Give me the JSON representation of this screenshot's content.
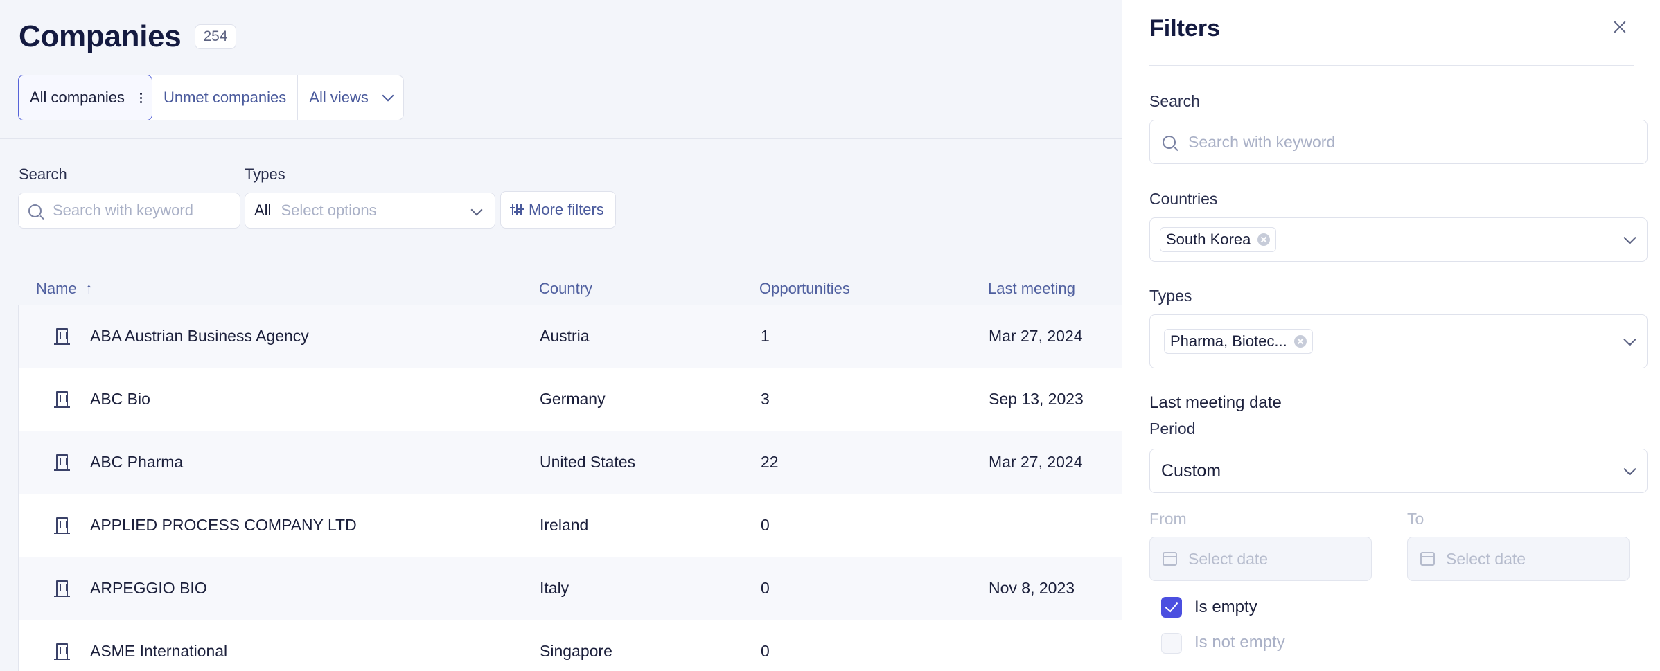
{
  "page": {
    "title": "Companies",
    "count": "254"
  },
  "views": {
    "tabs": [
      "All companies",
      "Unmet companies"
    ],
    "dropdown_label": "All views"
  },
  "filters_bar": {
    "search_label": "Search",
    "search_placeholder": "Search with keyword",
    "types_label": "Types",
    "types_value": "All",
    "types_placeholder": "Select options",
    "more_filters": "More filters"
  },
  "table": {
    "columns": [
      "Name",
      "Country",
      "Opportunities",
      "Last meeting"
    ],
    "rows": [
      {
        "name": "ABA Austrian Business Agency",
        "country": "Austria",
        "opportunities": "1",
        "last_meeting": "Mar 27, 2024"
      },
      {
        "name": "ABC Bio",
        "country": "Germany",
        "opportunities": "3",
        "last_meeting": "Sep 13, 2023"
      },
      {
        "name": "ABC Pharma",
        "country": "United States",
        "opportunities": "22",
        "last_meeting": "Mar 27, 2024"
      },
      {
        "name": "APPLIED PROCESS COMPANY LTD",
        "country": "Ireland",
        "opportunities": "0",
        "last_meeting": ""
      },
      {
        "name": "ARPEGGIO BIO",
        "country": "Italy",
        "opportunities": "0",
        "last_meeting": "Nov 8, 2023"
      },
      {
        "name": "ASME International",
        "country": "Singapore",
        "opportunities": "0",
        "last_meeting": ""
      }
    ]
  },
  "panel": {
    "title": "Filters",
    "search_label": "Search",
    "search_placeholder": "Search with keyword",
    "countries_label": "Countries",
    "countries_chip": "South Korea",
    "types_label": "Types",
    "types_chip": "Pharma, Biotec...",
    "last_meeting_label": "Last meeting date",
    "period_label": "Period",
    "period_value": "Custom",
    "from_label": "From",
    "to_label": "To",
    "date_placeholder": "Select date",
    "is_empty_label": "Is empty",
    "is_not_empty_label": "Is not empty"
  },
  "colors": {
    "accent": "#4b4fe0",
    "link": "#4a5a9c",
    "background": "#f3f5fa"
  }
}
